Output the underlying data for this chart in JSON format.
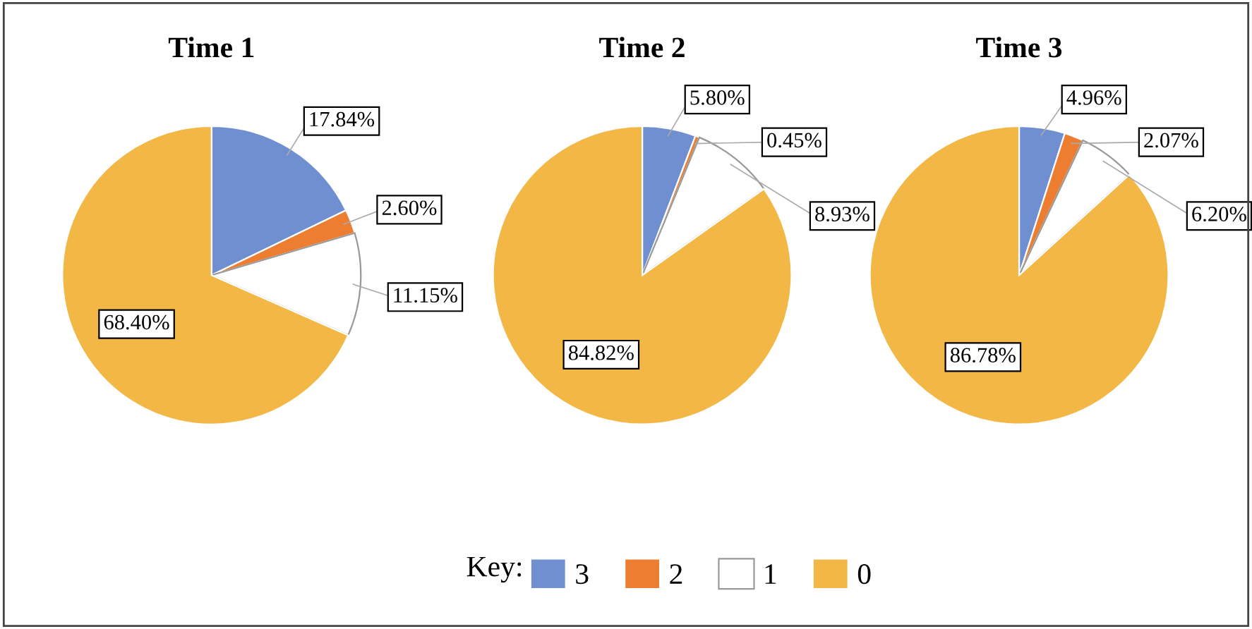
{
  "chart_data": [
    {
      "type": "pie",
      "title": "Time 1",
      "categories": [
        "3",
        "2",
        "1",
        "0"
      ],
      "values": [
        17.84,
        2.6,
        11.15,
        68.4
      ],
      "colors": [
        "#6f8fd0",
        "#ed7d31",
        "#ffffff",
        "#f2b744"
      ],
      "value_labels": [
        "17.84%",
        "2.60%",
        "11.15%",
        "68.40%"
      ],
      "legend": "bottom",
      "legend_title": "Key:"
    },
    {
      "type": "pie",
      "title": "Time 2",
      "categories": [
        null,
        null,
        null,
        null
      ],
      "values": [
        5.8,
        0.45,
        8.93,
        84.82
      ],
      "colors": [
        "#6f8fd0",
        "#ed7d31",
        "#ffffff",
        "#f2b744"
      ],
      "value_labels": [
        "5.80%",
        "0.45%",
        "8.93%",
        "84.82%"
      ]
    },
    {
      "type": "pie",
      "title": "Time 3",
      "categories": [
        null,
        null,
        null,
        null
      ],
      "values": [
        4.96,
        2.07,
        6.2,
        86.78
      ],
      "colors": [
        "#6f8fd0",
        "#ed7d31",
        "#ffffff",
        "#f2b744"
      ],
      "value_labels": [
        "4.96%",
        "2.07%",
        "6.20%",
        "86.78%"
      ]
    }
  ]
}
